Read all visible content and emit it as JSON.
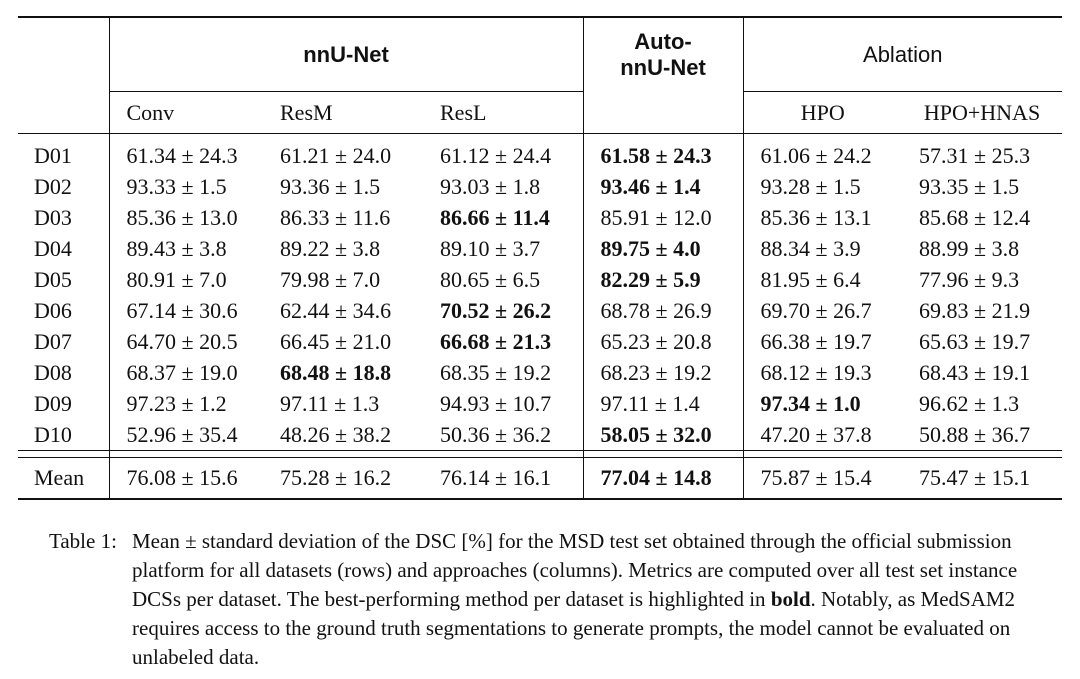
{
  "table": {
    "header": {
      "group_nnunet": "nnU-Net",
      "group_auto_line1": "Auto-",
      "group_auto_line2": "nnU-Net",
      "group_ablation": "Ablation",
      "sub_conv": "Conv",
      "sub_resm": "ResM",
      "sub_resl": "ResL",
      "sub_hpo": "HPO",
      "sub_hpohnas": "HPO+HNAS"
    },
    "rows": [
      {
        "label": "D01",
        "cells": [
          "61.34 ± 24.3",
          "61.21 ± 24.0",
          "61.12 ± 24.4",
          "61.58 ± 24.3",
          "61.06 ± 24.2",
          "57.31 ± 25.3"
        ],
        "best": 3
      },
      {
        "label": "D02",
        "cells": [
          "93.33 ± 1.5",
          "93.36 ± 1.5",
          "93.03 ± 1.8",
          "93.46 ± 1.4",
          "93.28 ± 1.5",
          "93.35 ± 1.5"
        ],
        "best": 3
      },
      {
        "label": "D03",
        "cells": [
          "85.36 ± 13.0",
          "86.33 ± 11.6",
          "86.66 ± 11.4",
          "85.91 ± 12.0",
          "85.36 ± 13.1",
          "85.68 ± 12.4"
        ],
        "best": 2
      },
      {
        "label": "D04",
        "cells": [
          "89.43 ± 3.8",
          "89.22 ± 3.8",
          "89.10 ± 3.7",
          "89.75 ± 4.0",
          "88.34 ± 3.9",
          "88.99 ± 3.8"
        ],
        "best": 3
      },
      {
        "label": "D05",
        "cells": [
          "80.91 ± 7.0",
          "79.98 ± 7.0",
          "80.65 ± 6.5",
          "82.29 ± 5.9",
          "81.95 ± 6.4",
          "77.96 ± 9.3"
        ],
        "best": 3
      },
      {
        "label": "D06",
        "cells": [
          "67.14 ± 30.6",
          "62.44 ± 34.6",
          "70.52 ± 26.2",
          "68.78 ± 26.9",
          "69.70 ± 26.7",
          "69.83 ± 21.9"
        ],
        "best": 2
      },
      {
        "label": "D07",
        "cells": [
          "64.70 ± 20.5",
          "66.45 ± 21.0",
          "66.68 ± 21.3",
          "65.23 ± 20.8",
          "66.38 ± 19.7",
          "65.63 ± 19.7"
        ],
        "best": 2
      },
      {
        "label": "D08",
        "cells": [
          "68.37 ± 19.0",
          "68.48 ± 18.8",
          "68.35 ± 19.2",
          "68.23 ± 19.2",
          "68.12 ± 19.3",
          "68.43 ± 19.1"
        ],
        "best": 1
      },
      {
        "label": "D09",
        "cells": [
          "97.23 ± 1.2",
          "97.11 ± 1.3",
          "94.93 ± 10.7",
          "97.11 ± 1.4",
          "97.34 ± 1.0",
          "96.62 ± 1.3"
        ],
        "best": 4
      },
      {
        "label": "D10",
        "cells": [
          "52.96 ± 35.4",
          "48.26 ± 38.2",
          "50.36 ± 36.2",
          "58.05 ± 32.0",
          "47.20 ± 37.8",
          "50.88 ± 36.7"
        ],
        "best": 3
      }
    ],
    "mean": {
      "label": "Mean",
      "cells": [
        "76.08 ± 15.6",
        "75.28 ± 16.2",
        "76.14 ± 16.1",
        "77.04 ± 14.8",
        "75.87 ± 15.4",
        "75.47 ± 15.1"
      ],
      "best": 3
    }
  },
  "caption": {
    "label": "Table 1:",
    "text_before_bold": "Mean ± standard deviation of the DSC [%] for the MSD test set obtained through the official submission platform for all datasets (rows) and approaches (columns). Metrics are computed over all test set instance DCSs per dataset.  The best-performing method per dataset is highlighted in ",
    "bold_word": "bold",
    "text_after_bold": ". Notably, as MedSAM2 requires access to the ground truth segmentations to generate prompts, the model cannot be evaluated on unlabeled data."
  }
}
